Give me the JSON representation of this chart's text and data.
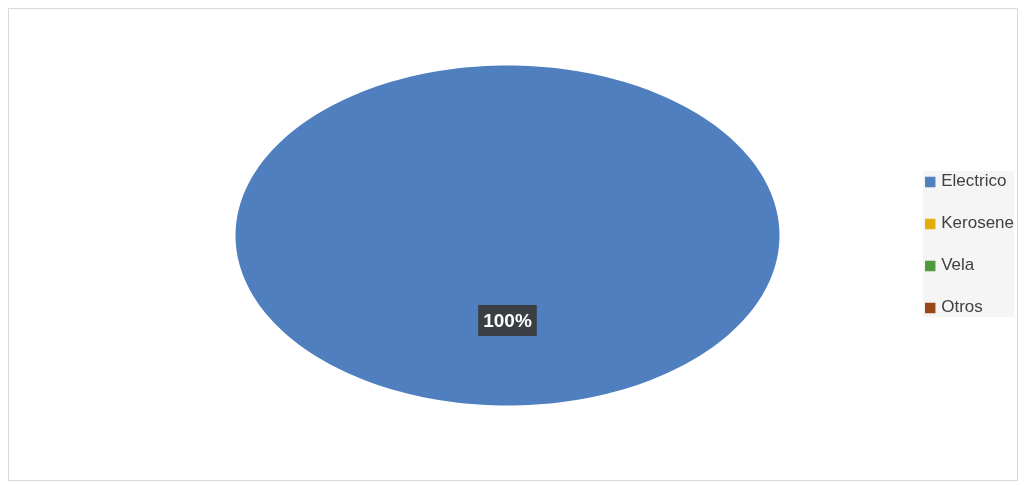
{
  "chart_data": {
    "type": "pie",
    "categories": [
      "Electrico",
      "Kerosene",
      "Vela",
      "Otros"
    ],
    "values": [
      100,
      0,
      0,
      0
    ],
    "colors": [
      "#4f7fbf",
      "#e2ae0c",
      "#4e9a3a",
      "#9a4716"
    ],
    "value_labels": [
      "100%",
      null,
      null,
      null
    ],
    "legend": "right"
  }
}
